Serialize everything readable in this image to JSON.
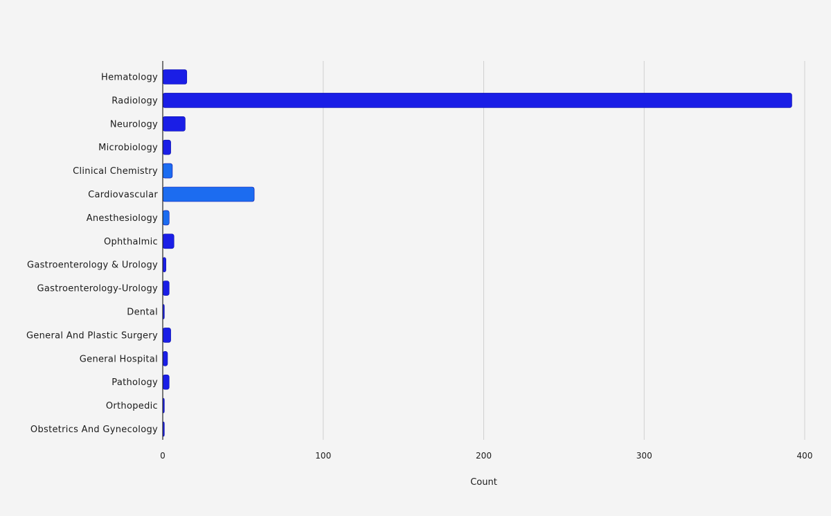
{
  "chart_data": {
    "type": "bar",
    "orientation": "horizontal",
    "title": "",
    "xlabel": "Count",
    "ylabel": "",
    "categories": [
      "Hematology",
      "Radiology",
      "Neurology",
      "Microbiology",
      "Clinical Chemistry",
      "Cardiovascular",
      "Anesthesiology",
      "Ophthalmic",
      "Gastroenterology & Urology",
      "Gastroenterology-Urology",
      "Dental",
      "General And Plastic Surgery",
      "General Hospital",
      "Pathology",
      "Orthopedic",
      "Obstetrics And Gynecology"
    ],
    "values": [
      15,
      392,
      14,
      5,
      6,
      57,
      4,
      7,
      2,
      4,
      1,
      5,
      3,
      4,
      1,
      1
    ],
    "xlim": [
      0,
      400
    ],
    "xticks": [
      "0",
      "100",
      "200",
      "300",
      "400"
    ],
    "grid": true,
    "colors": {
      "bar_main": "#1a1ee6",
      "bar_alt": "#1c6cf0",
      "bar_edge": "#0b0fa8",
      "grid": "#cfcfcf",
      "axis": "#222222",
      "background": "#f4f4f4"
    }
  }
}
